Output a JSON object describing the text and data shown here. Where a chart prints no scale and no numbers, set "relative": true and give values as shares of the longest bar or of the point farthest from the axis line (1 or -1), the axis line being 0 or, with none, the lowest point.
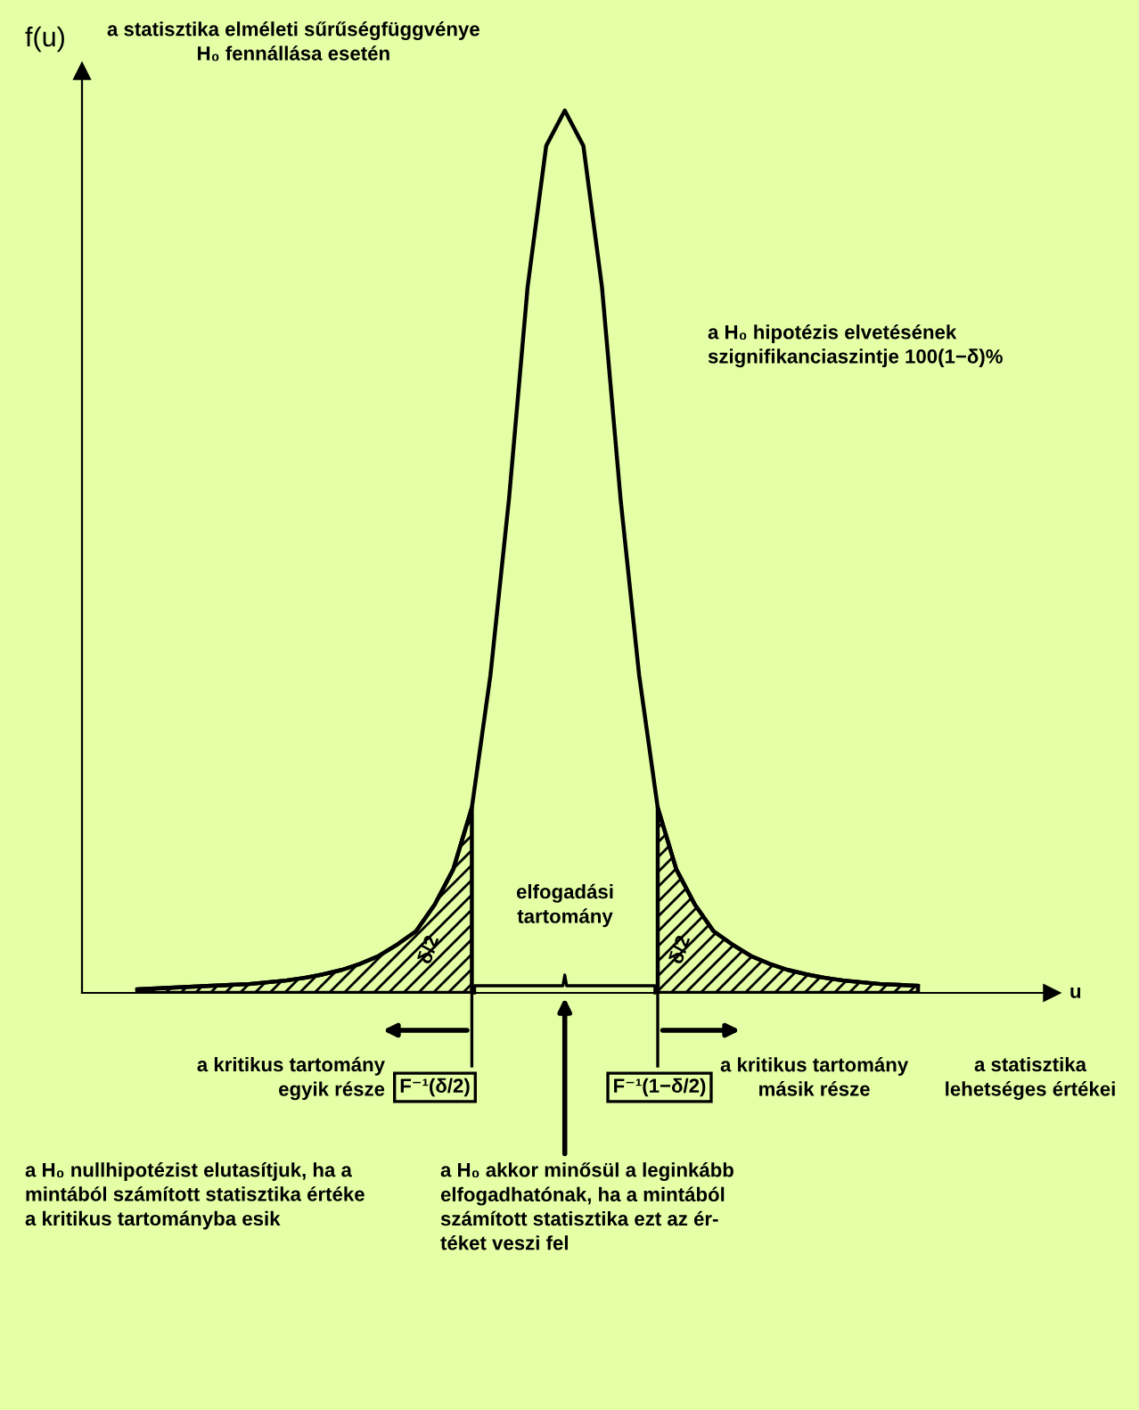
{
  "chart_data": {
    "type": "line",
    "relative": true,
    "ylabel": "f(u)",
    "categories": [
      null,
      null,
      null,
      null,
      null,
      null,
      null,
      null,
      null,
      null,
      null,
      null,
      null,
      null,
      null,
      null,
      null,
      null,
      null,
      null,
      null,
      null,
      null,
      null,
      null,
      null,
      null,
      null,
      null,
      null,
      null,
      null,
      null,
      null,
      null,
      null,
      null,
      null,
      null,
      null,
      null,
      null,
      null
    ],
    "series": [
      {
        "color": "#000000",
        "values": [
          0.004,
          0.005,
          0.006,
          0.007,
          0.008,
          0.009,
          0.01,
          0.012,
          0.014,
          0.017,
          0.021,
          0.026,
          0.033,
          0.042,
          0.055,
          0.07,
          0.1,
          0.14,
          0.21,
          0.36,
          0.56,
          0.8,
          0.96,
          1.0,
          0.96,
          0.8,
          0.56,
          0.36,
          0.21,
          0.14,
          0.1,
          0.07,
          0.055,
          0.042,
          0.033,
          0.026,
          0.021,
          0.017,
          0.014,
          0.012,
          0.01,
          0.009,
          0.008
        ]
      },
      {
        "type": "area",
        "color": "#000000",
        "values": [
          0.004,
          0.005,
          0.006,
          0.007,
          0.008,
          0.009,
          0.01,
          0.012,
          0.014,
          0.017,
          0.021,
          0.026,
          0.033,
          0.042,
          0.055,
          0.07,
          0.1,
          0.14,
          0.21,
          null,
          null,
          null,
          null,
          null,
          null,
          null,
          null,
          null,
          null,
          null,
          null,
          null,
          null,
          null,
          null,
          null,
          null,
          null,
          null,
          null,
          null,
          null,
          null
        ]
      },
      {
        "type": "area",
        "color": "#000000",
        "values": [
          null,
          null,
          null,
          null,
          null,
          null,
          null,
          null,
          null,
          null,
          null,
          null,
          null,
          null,
          null,
          null,
          null,
          null,
          null,
          null,
          null,
          null,
          null,
          null,
          null,
          null,
          null,
          null,
          0.21,
          0.14,
          0.1,
          0.07,
          0.055,
          0.042,
          0.033,
          0.026,
          0.021,
          0.017,
          0.014,
          0.012,
          0.01,
          0.009,
          0.008
        ]
      }
    ],
    "annotations": [
      "a statisztika elméleti sűrűségfüggvénye\nH₀ fennállása esetén",
      "a H₀ hipotézis elvetésének\nszignifikanciaszintje 100(1−δ)%",
      "δ/2",
      "δ/2",
      "elfogadási\ntartomány",
      "a kritikus tartomány\negyik része",
      "F⁻¹(δ/2)",
      "F⁻¹(1−δ/2)",
      "a kritikus tartomány\nmásik része",
      "a statisztika\nlehetséges értékei",
      "a H₀ nullhipotézist elutasítjuk, ha a\nmintából számított statisztika értéke\na kritikus tartományba esik",
      "a H₀ akkor minősül a leginkább\nelfogadhatónak, ha a mintából\nszámított statisztika ezt az ér-\ntéket veszi fel",
      "u"
    ]
  }
}
